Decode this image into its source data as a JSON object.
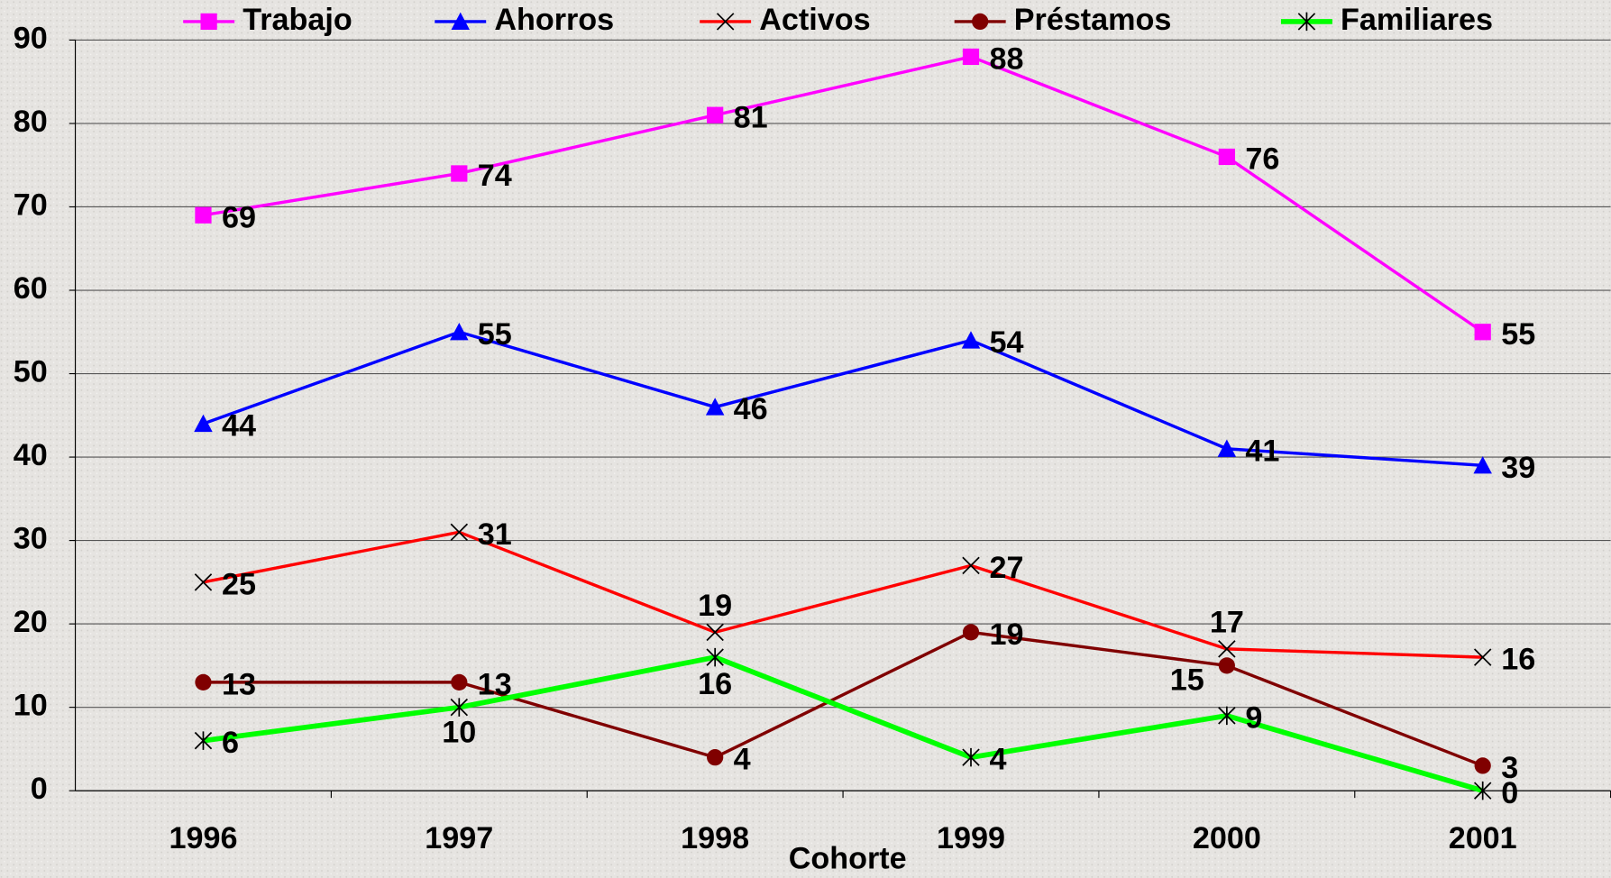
{
  "chart_data": {
    "type": "line",
    "x_label": "Cohorte",
    "categories": [
      "1996",
      "1997",
      "1998",
      "1999",
      "2000",
      "2001"
    ],
    "series": [
      {
        "name": "Trabajo",
        "color": "#ff00ff",
        "marker": "square",
        "values": [
          69,
          74,
          81,
          88,
          76,
          55
        ]
      },
      {
        "name": "Ahorros",
        "color": "#0000ff",
        "marker": "triangle",
        "values": [
          44,
          55,
          46,
          54,
          41,
          39
        ]
      },
      {
        "name": "Activos",
        "color": "#ff0000",
        "marker": "x",
        "values": [
          25,
          31,
          19,
          27,
          17,
          16
        ]
      },
      {
        "name": "Préstamos",
        "color": "#800000",
        "marker": "circle",
        "values": [
          13,
          13,
          4,
          19,
          15,
          3
        ]
      },
      {
        "name": "Familiares",
        "color": "#00ff00",
        "marker": "star",
        "values": [
          6,
          10,
          16,
          4,
          9,
          0
        ]
      }
    ],
    "ylim": [
      0,
      90
    ],
    "yticks": [
      0,
      10,
      20,
      30,
      40,
      50,
      60,
      70,
      80,
      90
    ],
    "grid": true
  }
}
